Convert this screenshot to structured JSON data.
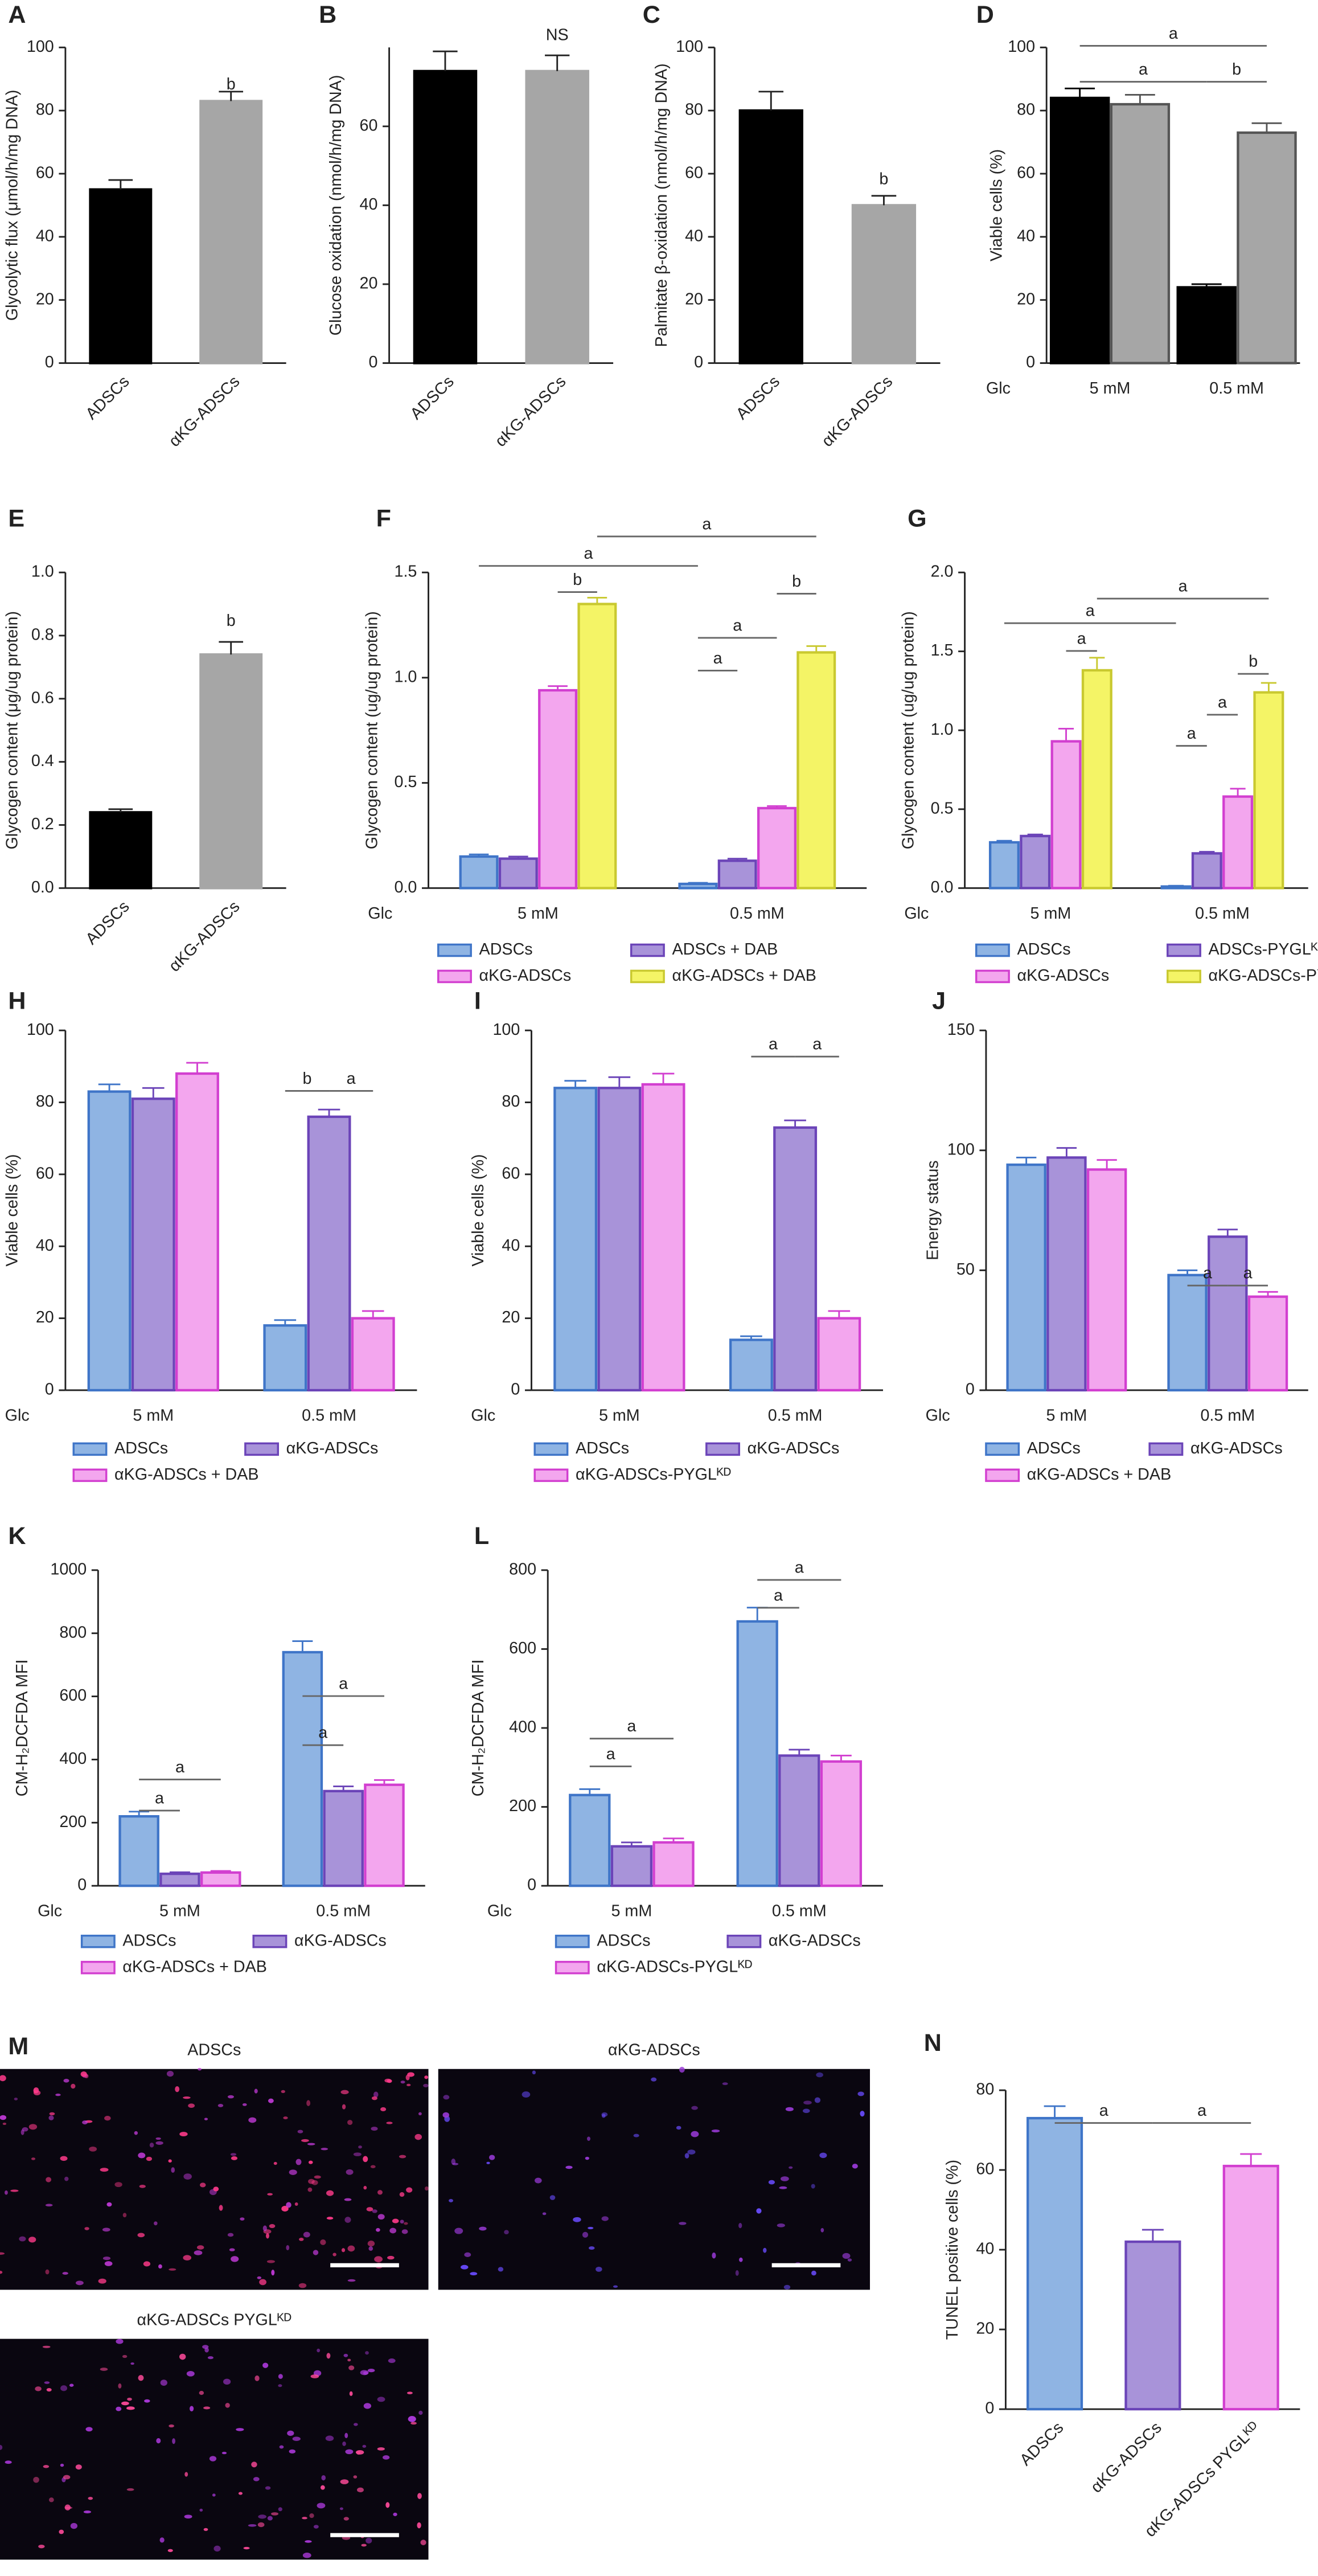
{
  "chart_data": [
    {
      "type": "bar",
      "label": "A",
      "y_label": "Glycolytic flux (μmol/h/mg DNA)",
      "ylim": [
        0,
        100
      ],
      "yticks": [
        0,
        20,
        40,
        60,
        80,
        100
      ],
      "categories": [
        "ADSCs",
        "αKG-ADSCs"
      ],
      "values": [
        55,
        83
      ],
      "errors": [
        3,
        3
      ],
      "colors": [
        "#000000",
        "#a6a6a6"
      ],
      "annotations": [
        "b"
      ]
    },
    {
      "type": "bar",
      "label": "B",
      "y_label": "Glucose oxidation (nmol/h/mg DNA)",
      "ylim": [
        0,
        80
      ],
      "yticks": [
        0,
        20,
        40,
        60
      ],
      "categories": [
        "ADSCs",
        "αKG-ADSCs"
      ],
      "values": [
        74,
        74
      ],
      "errors": [
        5,
        4
      ],
      "colors": [
        "#000000",
        "#a6a6a6"
      ],
      "annotations": [
        "NS"
      ]
    },
    {
      "type": "bar",
      "label": "C",
      "y_label": "Palmitate β-oxidation (nmol/h/mg DNA)",
      "ylim": [
        0,
        100
      ],
      "yticks": [
        0,
        20,
        40,
        60,
        80,
        100
      ],
      "categories": [
        "ADSCs",
        "αKG-ADSCs"
      ],
      "values": [
        80,
        50
      ],
      "errors": [
        6,
        3
      ],
      "colors": [
        "#000000",
        "#a6a6a6"
      ],
      "annotations": [
        "b"
      ]
    },
    {
      "type": "grouped-bar",
      "label": "D",
      "y_label": "Viable cells (%)",
      "x_label": "Glc",
      "ylim": [
        0,
        100
      ],
      "yticks": [
        0,
        20,
        40,
        60,
        80,
        100
      ],
      "categories": [
        "5 mM",
        "0.5 mM"
      ],
      "series": [
        {
          "color": "#000000",
          "edge_color": "#000000",
          "values": [
            84,
            24
          ],
          "errors": [
            3,
            1
          ]
        },
        {
          "color": "#a6a6a6",
          "edge_color": "#555555",
          "values": [
            82,
            73
          ],
          "errors": [
            3,
            3
          ]
        }
      ],
      "annotations": [
        "a",
        "a",
        "b"
      ]
    },
    {
      "type": "bar",
      "label": "E",
      "y_label": "Glycogen content (μg/ug protein)",
      "ylim": [
        0,
        1
      ],
      "yticks": [
        {
          "value": 0,
          "label": "0.0"
        },
        0.2,
        0.4,
        0.6,
        0.8,
        {
          "value": 1,
          "label": "1.0"
        }
      ],
      "categories": [
        "ADSCs",
        "αKG-ADSCs"
      ],
      "values": [
        0.24,
        0.74
      ],
      "errors": [
        0.01,
        0.04
      ],
      "colors": [
        "#000000",
        "#a6a6a6"
      ],
      "annotations": [
        "b"
      ]
    },
    {
      "type": "grouped-bar",
      "label": "F",
      "y_label": "Glycogen content (ug/ug protein)",
      "x_label": "Glc",
      "ylim": [
        0,
        1.5
      ],
      "yticks": [
        {
          "value": 0,
          "label": "0.0"
        },
        0.5,
        {
          "value": 1,
          "label": "1.0"
        },
        1.5
      ],
      "categories": [
        "5 mM",
        "0.5 mM"
      ],
      "series": [
        {
          "name": "ADSCs",
          "color": "#8fb4e3",
          "edge_color": "#3f75c8",
          "values": [
            0.15,
            0.02
          ],
          "errors": [
            0.01,
            0.005
          ]
        },
        {
          "name": "ADSCs + DAB",
          "color": "#a893d9",
          "edge_color": "#6b44b8",
          "values": [
            0.14,
            0.13
          ],
          "errors": [
            0.01,
            0.01
          ]
        },
        {
          "name": "αKG-ADSCs",
          "color": "#f3a6ee",
          "edge_color": "#d23fd0",
          "values": [
            0.94,
            0.38
          ],
          "errors": [
            0.02,
            0.01
          ]
        },
        {
          "name": "αKG-ADSCs + DAB",
          "color": "#f4f466",
          "edge_color": "#c9c930",
          "values": [
            1.35,
            1.12
          ],
          "errors": [
            0.03,
            0.03
          ]
        }
      ],
      "annotations": [
        "a",
        "a",
        "b",
        "b",
        "a",
        "a"
      ]
    },
    {
      "type": "grouped-bar",
      "label": "G",
      "y_label": "Glycogen content (ug/ug protein)",
      "x_label": "Glc",
      "ylim": [
        0,
        2
      ],
      "yticks": [
        {
          "value": 0,
          "label": "0.0"
        },
        0.5,
        {
          "value": 1,
          "label": "1.0"
        },
        1.5,
        {
          "value": 2,
          "label": "2.0"
        }
      ],
      "categories": [
        "5 mM",
        "0.5 mM"
      ],
      "series": [
        {
          "name": "ADSCs",
          "color": "#8fb4e3",
          "edge_color": "#3f75c8",
          "values": [
            0.29,
            0.01
          ],
          "errors": [
            0.01,
            0.005
          ]
        },
        {
          "name": "ADSCs-PYGLᴷᴰ",
          "color": "#a893d9",
          "edge_color": "#6b44b8",
          "values": [
            0.33,
            0.22
          ],
          "errors": [
            0.01,
            0.01
          ]
        },
        {
          "name": "αKG-ADSCs",
          "color": "#f3a6ee",
          "edge_color": "#d23fd0",
          "values": [
            0.93,
            0.58
          ],
          "errors": [
            0.08,
            0.05
          ]
        },
        {
          "name": "αKG-ADSCs-PYGLᴷᴰ",
          "color": "#f4f466",
          "edge_color": "#c9c930",
          "values": [
            1.38,
            1.24
          ],
          "errors": [
            0.08,
            0.06
          ]
        }
      ],
      "annotations": [
        "a",
        "a",
        "a",
        "b",
        "a",
        "a"
      ]
    },
    {
      "type": "grouped-bar",
      "label": "H",
      "y_label": "Viable cells (%)",
      "x_label": "Glc",
      "ylim": [
        0,
        100
      ],
      "yticks": [
        0,
        20,
        40,
        60,
        80,
        100
      ],
      "categories": [
        "5 mM",
        "0.5 mM"
      ],
      "series": [
        {
          "name": "ADSCs",
          "color": "#8fb4e3",
          "edge_color": "#3f75c8",
          "values": [
            83,
            18
          ],
          "errors": [
            2,
            1.5
          ]
        },
        {
          "name": "αKG-ADSCs",
          "color": "#a893d9",
          "edge_color": "#6b44b8",
          "values": [
            81,
            76
          ],
          "errors": [
            3,
            2
          ]
        },
        {
          "name": "αKG-ADSCs + DAB",
          "color": "#f3a6ee",
          "edge_color": "#d23fd0",
          "values": [
            88,
            20
          ],
          "errors": [
            3,
            2
          ]
        }
      ],
      "annotations": [
        "b",
        "a"
      ]
    },
    {
      "type": "grouped-bar",
      "label": "I",
      "y_label": "Viable cells (%)",
      "x_label": "Glc",
      "ylim": [
        0,
        100
      ],
      "yticks": [
        0,
        20,
        40,
        60,
        80,
        100
      ],
      "categories": [
        "5 mM",
        "0.5 mM"
      ],
      "series": [
        {
          "name": "ADSCs",
          "color": "#8fb4e3",
          "edge_color": "#3f75c8",
          "values": [
            84,
            14
          ],
          "errors": [
            2,
            1
          ]
        },
        {
          "name": "αKG-ADSCs",
          "color": "#a893d9",
          "edge_color": "#6b44b8",
          "values": [
            84,
            73
          ],
          "errors": [
            3,
            2
          ]
        },
        {
          "name": "αKG-ADSCs-PYGLᴷᴰ",
          "color": "#f3a6ee",
          "edge_color": "#d23fd0",
          "values": [
            85,
            20
          ],
          "errors": [
            3,
            2
          ]
        }
      ],
      "annotations": [
        "a",
        "a"
      ]
    },
    {
      "type": "grouped-bar",
      "label": "J",
      "y_label": "Energy status",
      "x_label": "Glc",
      "ylim": [
        0,
        150
      ],
      "yticks": [
        0,
        50,
        100,
        150
      ],
      "categories": [
        "5 mM",
        "0.5 mM"
      ],
      "series": [
        {
          "name": "ADSCs",
          "color": "#8fb4e3",
          "edge_color": "#3f75c8",
          "values": [
            94,
            48
          ],
          "errors": [
            3,
            2
          ]
        },
        {
          "name": "αKG-ADSCs",
          "color": "#a893d9",
          "edge_color": "#6b44b8",
          "values": [
            97,
            64
          ],
          "errors": [
            4,
            3
          ]
        },
        {
          "name": "αKG-ADSCs + DAB",
          "color": "#f3a6ee",
          "edge_color": "#d23fd0",
          "values": [
            92,
            39
          ],
          "errors": [
            4,
            2
          ]
        }
      ],
      "annotations": [
        "a",
        "a"
      ]
    },
    {
      "type": "grouped-bar",
      "label": "K",
      "y_label": "CM-H₂DCFDA MFI",
      "x_label": "Glc",
      "ylim": [
        0,
        1000
      ],
      "yticks": [
        0,
        200,
        400,
        600,
        800,
        1000
      ],
      "categories": [
        "5 mM",
        "0.5 mM"
      ],
      "series": [
        {
          "name": "ADSCs",
          "color": "#8fb4e3",
          "edge_color": "#3f75c8",
          "values": [
            220,
            740
          ],
          "errors": [
            15,
            35
          ]
        },
        {
          "name": "αKG-ADSCs",
          "color": "#a893d9",
          "edge_color": "#6b44b8",
          "values": [
            38,
            300
          ],
          "errors": [
            5,
            15
          ]
        },
        {
          "name": "αKG-ADSCs + DAB",
          "color": "#f3a6ee",
          "edge_color": "#d23fd0",
          "values": [
            42,
            320
          ],
          "errors": [
            5,
            15
          ]
        }
      ],
      "annotations": [
        "a",
        "a",
        "a",
        "a"
      ]
    },
    {
      "type": "grouped-bar",
      "label": "L",
      "y_label": "CM-H₂DCFDA MFI",
      "x_label": "Glc",
      "ylim": [
        0,
        800
      ],
      "yticks": [
        0,
        200,
        400,
        600,
        800
      ],
      "categories": [
        "5 mM",
        "0.5 mM"
      ],
      "series": [
        {
          "name": "ADSCs",
          "color": "#8fb4e3",
          "edge_color": "#3f75c8",
          "values": [
            230,
            670
          ],
          "errors": [
            15,
            35
          ]
        },
        {
          "name": "αKG-ADSCs",
          "color": "#a893d9",
          "edge_color": "#6b44b8",
          "values": [
            100,
            330
          ],
          "errors": [
            10,
            15
          ]
        },
        {
          "name": "αKG-ADSCs-PYGLᴷᴰ",
          "color": "#f3a6ee",
          "edge_color": "#d23fd0",
          "values": [
            110,
            315
          ],
          "errors": [
            10,
            15
          ]
        }
      ],
      "annotations": [
        "a",
        "a",
        "a",
        "a"
      ]
    },
    {
      "type": "bar",
      "label": "N",
      "y_label": "TUNEL positive cells (%)",
      "ylim": [
        0,
        80
      ],
      "yticks": [
        0,
        20,
        40,
        60,
        80
      ],
      "categories": [
        "ADSCs",
        "αKG-ADSCs",
        "αKG-ADSCs PYGLᴷᴰ"
      ],
      "values": [
        73,
        42,
        61
      ],
      "errors": [
        3,
        3,
        3
      ],
      "colors": [
        "#8fb4e3",
        "#a893d9",
        "#f3a6ee"
      ],
      "edge_colors": [
        "#3f75c8",
        "#6b44b8",
        "#d23fd0"
      ],
      "annotations": [
        "a",
        "a"
      ]
    }
  ],
  "panel_m": {
    "label": "M",
    "images": [
      {
        "title": "ADSCs"
      },
      {
        "title": "αKG-ADSCs"
      },
      {
        "title": "αKG-ADSCs PYGLᴷᴰ"
      }
    ]
  }
}
